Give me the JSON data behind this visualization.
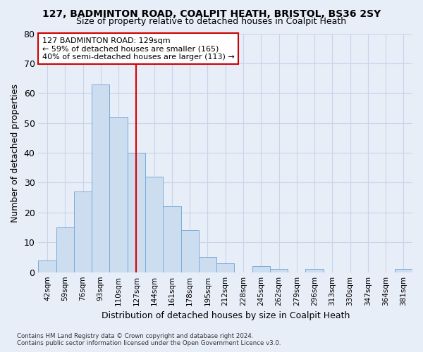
{
  "title1": "127, BADMINTON ROAD, COALPIT HEATH, BRISTOL, BS36 2SY",
  "title2": "Size of property relative to detached houses in Coalpit Heath",
  "xlabel": "Distribution of detached houses by size in Coalpit Heath",
  "ylabel": "Number of detached properties",
  "footnote": "Contains HM Land Registry data © Crown copyright and database right 2024.\nContains public sector information licensed under the Open Government Licence v3.0.",
  "bin_labels": [
    "42sqm",
    "59sqm",
    "76sqm",
    "93sqm",
    "110sqm",
    "127sqm",
    "144sqm",
    "161sqm",
    "178sqm",
    "195sqm",
    "212sqm",
    "228sqm",
    "245sqm",
    "262sqm",
    "279sqm",
    "296sqm",
    "313sqm",
    "330sqm",
    "347sqm",
    "364sqm",
    "381sqm"
  ],
  "bar_heights": [
    4,
    15,
    27,
    63,
    52,
    40,
    32,
    22,
    14,
    5,
    3,
    0,
    2,
    1,
    0,
    1,
    0,
    0,
    0,
    0,
    1
  ],
  "bar_color": "#ccddf0",
  "bar_edge_color": "#7aabda",
  "highlight_bar_index": 5,
  "highlight_line_color": "#dd0000",
  "ylim": [
    0,
    80
  ],
  "yticks": [
    0,
    10,
    20,
    30,
    40,
    50,
    60,
    70,
    80
  ],
  "annotation_line1": "127 BADMINTON ROAD: 129sqm",
  "annotation_line2": "← 59% of detached houses are smaller (165)",
  "annotation_line3": "40% of semi-detached houses are larger (113) →",
  "annotation_box_color": "#ffffff",
  "annotation_box_edge_color": "#cc0000",
  "grid_color": "#c8d4e8",
  "bg_color": "#e8eef8",
  "plot_bg_color": "#e8eef8",
  "title1_fontsize": 10,
  "title2_fontsize": 9
}
